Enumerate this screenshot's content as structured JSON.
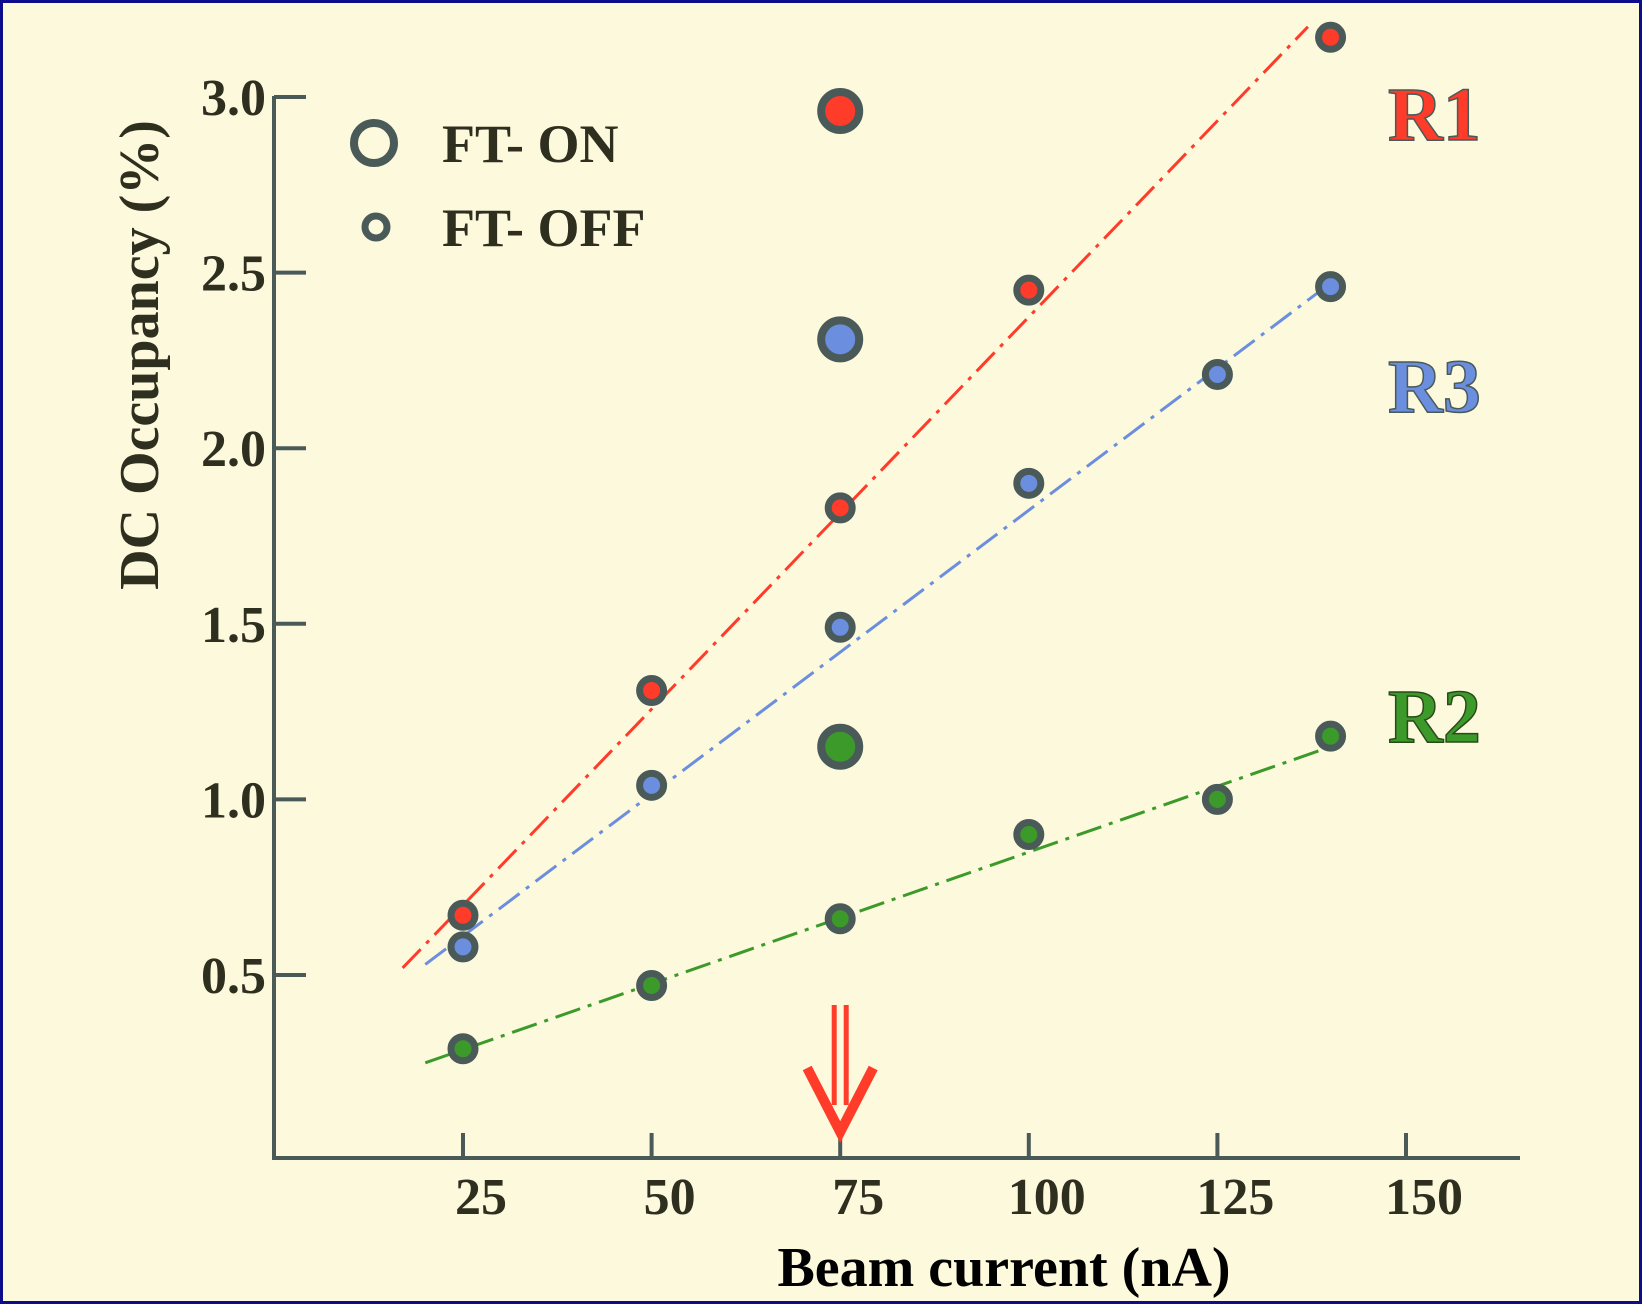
{
  "colors": {
    "background": "#fdf9dc",
    "frame": "#0d0d8c",
    "axis": "#4a5a58",
    "marker_ring": "#4a5a58",
    "text": "#2f2f1f",
    "arrow": "#ff3b2a"
  },
  "chart_data": {
    "type": "scatter",
    "title": "",
    "xlabel": "Beam current (nA)",
    "ylabel": "DC Occupancy (%)",
    "xlim": [
      0,
      165
    ],
    "ylim": [
      0,
      3.0
    ],
    "x_ticks": [
      25,
      50,
      75,
      100,
      125,
      150
    ],
    "x_tick_labels": [
      "25",
      "50",
      "75",
      "100",
      "125",
      "150"
    ],
    "y_ticks": [
      0.5,
      1.0,
      1.5,
      2.0,
      2.5,
      3.0
    ],
    "y_tick_labels": [
      "0.5",
      "1.0",
      "1.5",
      "2.0",
      "2.5",
      "3.0"
    ],
    "grid": false,
    "legend": {
      "placement": "top-left",
      "entries": [
        {
          "label": "FT- ON",
          "marker": "large-ring"
        },
        {
          "label": "FT- OFF",
          "marker": "small-ring"
        }
      ]
    },
    "annotations": [
      {
        "type": "arrow",
        "x": 75,
        "direction": "down",
        "color": "#ff3b2a"
      }
    ],
    "series": [
      {
        "name": "R1",
        "color": "#ff3b2a",
        "points_ft_off": [
          [
            25,
            0.67
          ],
          [
            50,
            1.31
          ],
          [
            75,
            1.83
          ],
          [
            100,
            2.45
          ],
          [
            140,
            3.17
          ]
        ],
        "points_ft_on": [
          [
            75,
            2.96
          ]
        ],
        "fit_line": [
          [
            17,
            0.52
          ],
          [
            137,
            3.2
          ]
        ]
      },
      {
        "name": "R3",
        "color": "#6b8ede",
        "points_ft_off": [
          [
            25,
            0.58
          ],
          [
            50,
            1.04
          ],
          [
            75,
            1.49
          ],
          [
            100,
            1.9
          ],
          [
            125,
            2.21
          ],
          [
            140,
            2.46
          ]
        ],
        "points_ft_on": [
          [
            75,
            2.31
          ]
        ],
        "fit_line": [
          [
            20,
            0.53
          ],
          [
            140,
            2.47
          ]
        ]
      },
      {
        "name": "R2",
        "color": "#3c9a2a",
        "points_ft_off": [
          [
            25,
            0.29
          ],
          [
            50,
            0.47
          ],
          [
            75,
            0.66
          ],
          [
            100,
            0.9
          ],
          [
            125,
            1.0
          ],
          [
            140,
            1.18
          ]
        ],
        "points_ft_on": [
          [
            75,
            1.15
          ]
        ],
        "fit_line": [
          [
            20,
            0.25
          ],
          [
            140,
            1.15
          ]
        ]
      }
    ]
  }
}
